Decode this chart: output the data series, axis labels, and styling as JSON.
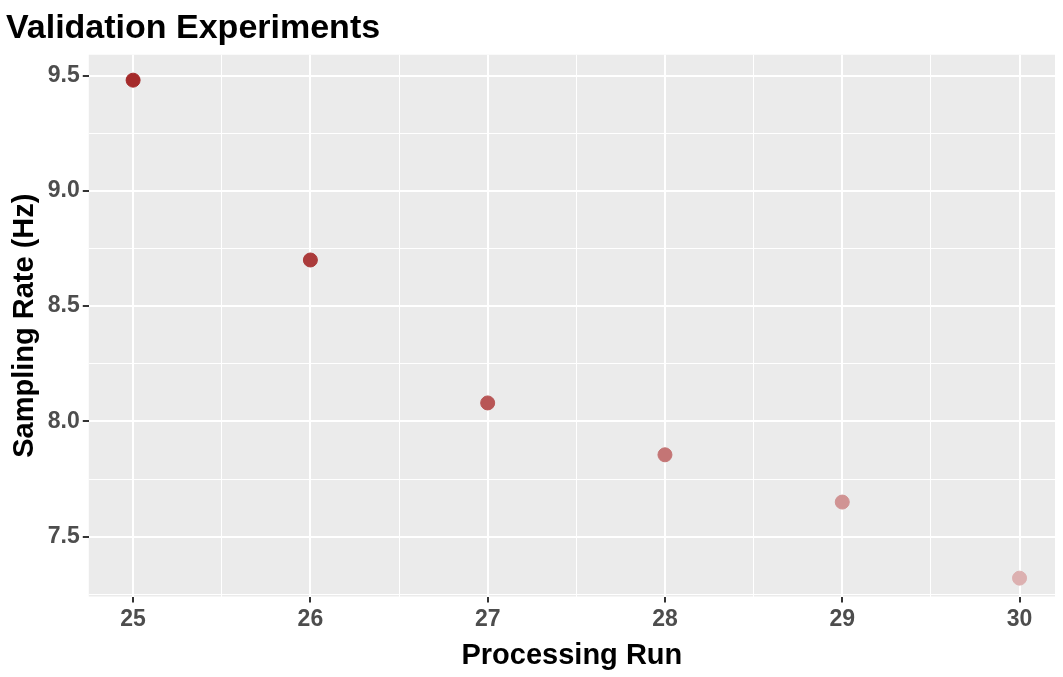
{
  "chart_data": {
    "type": "scatter",
    "title": "Validation Experiments",
    "xlabel": "Processing Run",
    "ylabel": "Sampling Rate (Hz)",
    "x": [
      25,
      26,
      27,
      28,
      29,
      30
    ],
    "values": [
      9.48,
      8.7,
      8.08,
      7.855,
      7.65,
      7.32
    ],
    "colors": [
      "#a52a2a",
      "#ab3b3b",
      "#b85656",
      "#c47575",
      "#d09393",
      "#dcb0b0"
    ],
    "xlim": [
      24.75,
      30.2
    ],
    "ylim": [
      7.24,
      9.59
    ],
    "xticks": [
      25,
      {
        "value": 25.5,
        "label": null
      },
      26,
      {
        "value": 26.5,
        "label": null
      },
      27,
      {
        "value": 27.5,
        "label": null
      },
      28,
      {
        "value": 28.5,
        "label": null
      },
      29,
      {
        "value": 29.5,
        "label": null
      },
      30
    ],
    "yticks": [
      {
        "value": 7.25,
        "label": null
      },
      {
        "value": 7.5,
        "label": "7.5"
      },
      {
        "value": 7.75,
        "label": null
      },
      {
        "value": 8,
        "label": "8.0"
      },
      {
        "value": 8.25,
        "label": null
      },
      {
        "value": 8.5,
        "label": "8.5"
      },
      {
        "value": 8.75,
        "label": null
      },
      {
        "value": 9,
        "label": "9.0"
      },
      {
        "value": 9.25,
        "label": null
      },
      {
        "value": 9.5,
        "label": "9.5"
      }
    ],
    "marker": "circle",
    "grid": true
  }
}
